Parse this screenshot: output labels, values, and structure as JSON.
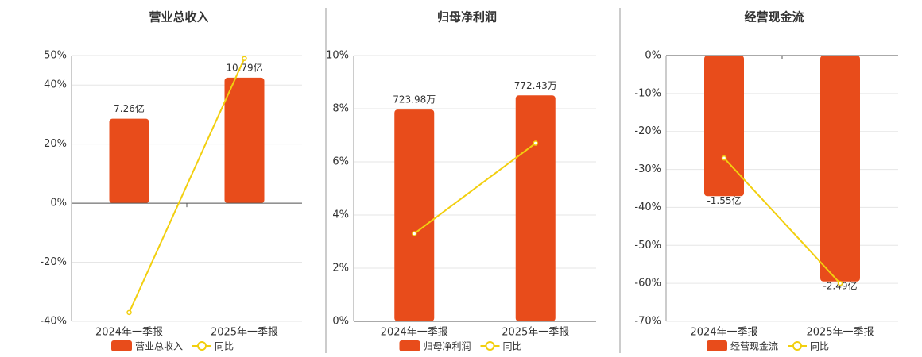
{
  "chart_data": [
    {
      "type": "bar-line",
      "title": "营业总收入",
      "categories": [
        "2024年一季报",
        "2025年一季报"
      ],
      "series": [
        {
          "name": "营业总收入",
          "color": "#e84c1b",
          "values": [
            7.26,
            10.79
          ],
          "value_labels": [
            "7.26亿",
            "10.79亿"
          ]
        },
        {
          "name": "同比",
          "color": "#f2cf0f",
          "values": [
            -37,
            49
          ]
        }
      ],
      "ylim": [
        -40,
        50
      ],
      "yticks": [
        {
          "value": 50,
          "label": "50%"
        },
        {
          "value": 40,
          "label": "40%"
        },
        {
          "value": 20,
          "label": "20%"
        },
        {
          "value": 0,
          "label": "0%"
        },
        {
          "value": -20,
          "label": "-20%"
        },
        {
          "value": -40,
          "label": "-40%"
        }
      ],
      "grid": true
    },
    {
      "type": "bar-line",
      "title": "归母净利润",
      "categories": [
        "2024年一季报",
        "2025年一季报"
      ],
      "series": [
        {
          "name": "归母净利润",
          "color": "#e84c1b",
          "values": [
            723.98,
            772.43
          ],
          "value_labels": [
            "723.98万",
            "772.43万"
          ]
        },
        {
          "name": "同比",
          "color": "#f2cf0f",
          "values": [
            3.3,
            6.7
          ]
        }
      ],
      "ylim": [
        0,
        10
      ],
      "yticks": [
        {
          "value": 10,
          "label": "10%"
        },
        {
          "value": 8,
          "label": "8%"
        },
        {
          "value": 6,
          "label": "6%"
        },
        {
          "value": 4,
          "label": "4%"
        },
        {
          "value": 2,
          "label": "2%"
        },
        {
          "value": 0,
          "label": "0%"
        }
      ],
      "grid": true
    },
    {
      "type": "bar-line",
      "title": "经营现金流",
      "categories": [
        "2024年一季报",
        "2025年一季报"
      ],
      "series": [
        {
          "name": "经营现金流",
          "color": "#e84c1b",
          "values": [
            -1.55,
            -2.49
          ],
          "value_labels": [
            "-1.55亿",
            "-2.49亿"
          ]
        },
        {
          "name": "同比",
          "color": "#f2cf0f",
          "values": [
            -27,
            -60
          ]
        }
      ],
      "ylim": [
        -70,
        0
      ],
      "yticks": [
        {
          "value": 0,
          "label": "0%"
        },
        {
          "value": -10,
          "label": "-10%"
        },
        {
          "value": -20,
          "label": "-20%"
        },
        {
          "value": -30,
          "label": "-30%"
        },
        {
          "value": -40,
          "label": "-40%"
        },
        {
          "value": -50,
          "label": "-50%"
        },
        {
          "value": -60,
          "label": "-60%"
        },
        {
          "value": -70,
          "label": "-70%"
        }
      ],
      "grid": true
    }
  ]
}
